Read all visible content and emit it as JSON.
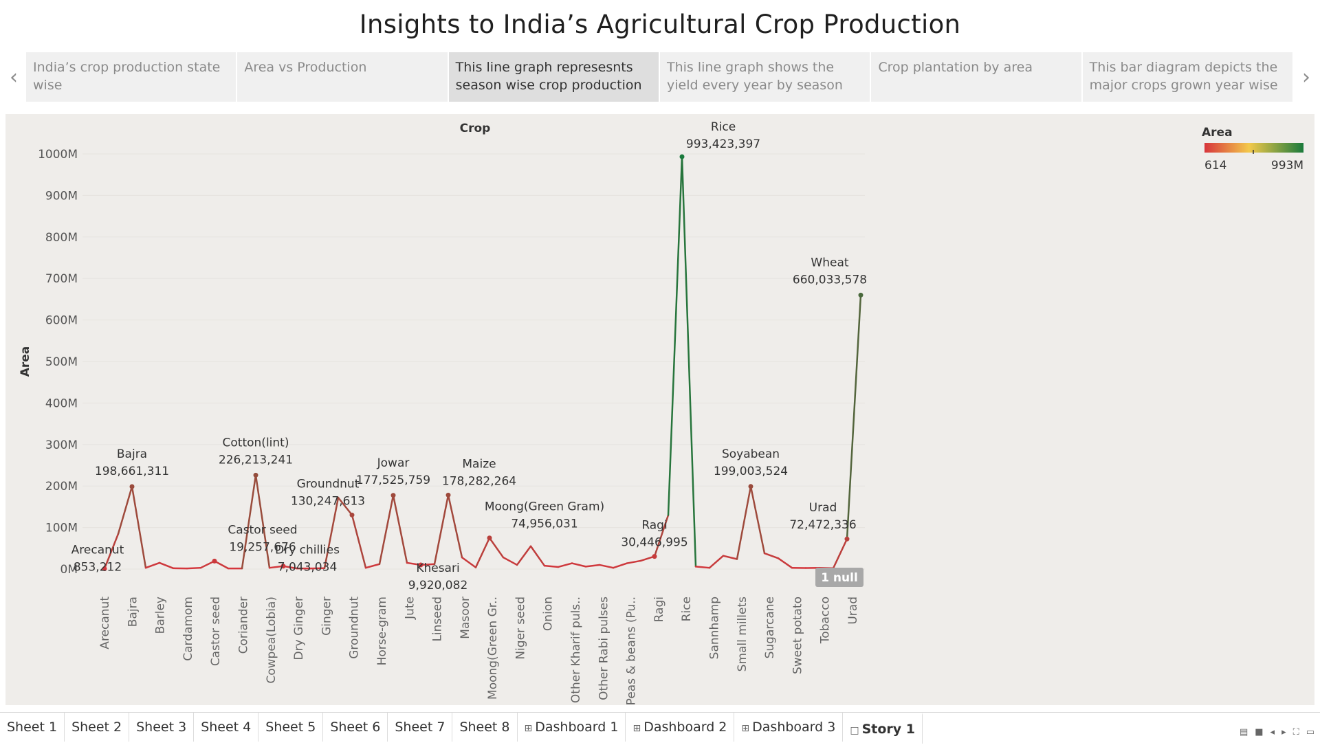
{
  "story": {
    "title": "Insights to India’s Agricultural Crop Production",
    "points": [
      {
        "label": "India’s crop production state wise",
        "active": false
      },
      {
        "label": "Area vs Production",
        "active": false
      },
      {
        "label": "This line graph represesnts season wise crop production",
        "active": true
      },
      {
        "label": "This line graph shows the yield every year by season",
        "active": false
      },
      {
        "label": "Crop plantation by area",
        "active": false
      },
      {
        "label": "This bar diagram depicts the major crops grown year wise",
        "active": false
      }
    ]
  },
  "legend": {
    "title": "Area",
    "min_label": "614",
    "max_label": "993M",
    "color_low": "#d7353c",
    "color_mid": "#f3c94b",
    "color_high": "#1a7a3c"
  },
  "null_badge": "1 null",
  "chart_data": {
    "type": "line",
    "title": "Crop",
    "ylabel": "Area",
    "ylim": [
      0,
      1050000000
    ],
    "y_ticks": [
      "0M",
      "100M",
      "200M",
      "300M",
      "400M",
      "500M",
      "600M",
      "700M",
      "800M",
      "900M",
      "1000M"
    ],
    "categories_shown": [
      "Arecanut",
      "Bajra",
      "Barley",
      "Cardamom",
      "Castor seed",
      "Coriander",
      "Cowpea(Lobia)",
      "Dry Ginger",
      "Ginger",
      "Groundnut",
      "Horse-gram",
      "Jute",
      "Linseed",
      "Masoor",
      "Moong(Green Gr..",
      "Niger seed",
      "Onion",
      "Other Kharif puls..",
      "Other Rabi pulses",
      "Peas & beans (Pu..",
      "Ragi",
      "Rice",
      "Sannhamp",
      "Small millets",
      "Sugarcane",
      "Sweet potato",
      "Tobacco",
      "Urad"
    ],
    "values": [
      853212,
      85000000,
      198661311,
      3000000,
      15000000,
      2000000,
      1500000,
      3000000,
      19257676,
      1500000,
      1500000,
      226213241,
      3000000,
      7043034,
      1500000,
      1500000,
      2000000,
      172000000,
      130247613,
      3000000,
      12000000,
      177525759,
      15000000,
      9920082,
      12000000,
      178282264,
      28000000,
      4000000,
      74956031,
      28000000,
      10000000,
      55000000,
      8000000,
      5000000,
      14000000,
      6000000,
      10000000,
      3000000,
      14000000,
      20000000,
      30446995,
      130000000,
      993423397,
      6000000,
      3000000,
      32000000,
      24000000,
      199003524,
      38000000,
      26000000,
      3000000,
      2500000,
      3000000,
      2000000,
      72472336,
      660033578
    ],
    "annotations": [
      {
        "name": "Arecanut",
        "value": "853,212"
      },
      {
        "name": "Bajra",
        "value": "198,661,311"
      },
      {
        "name": "Castor seed",
        "value": "19,257,676"
      },
      {
        "name": "Cotton(lint)",
        "value": "226,213,241"
      },
      {
        "name": "Dry chillies",
        "value": "7,043,034"
      },
      {
        "name": "Groundnut",
        "value": "130,247,613"
      },
      {
        "name": "Jowar",
        "value": "177,525,759"
      },
      {
        "name": "Khesari",
        "value": "9,920,082"
      },
      {
        "name": "Maize",
        "value": "178,282,264"
      },
      {
        "name": "Moong(Green Gram)",
        "value": "74,956,031"
      },
      {
        "name": "Ragi",
        "value": "30,446,995"
      },
      {
        "name": "Rice",
        "value": "993,423,397"
      },
      {
        "name": "Soyabean",
        "value": "199,003,524"
      },
      {
        "name": "Urad",
        "value": "72,472,336"
      },
      {
        "name": "Wheat",
        "value": "660,033,578"
      }
    ]
  },
  "tabs": [
    {
      "label": "Sheet 1",
      "icon": "",
      "active": false
    },
    {
      "label": "Sheet 2",
      "icon": "",
      "active": false
    },
    {
      "label": "Sheet 3",
      "icon": "",
      "active": false
    },
    {
      "label": "Sheet 4",
      "icon": "",
      "active": false
    },
    {
      "label": "Sheet 5",
      "icon": "",
      "active": false
    },
    {
      "label": "Sheet 6",
      "icon": "",
      "active": false
    },
    {
      "label": "Sheet 7",
      "icon": "",
      "active": false
    },
    {
      "label": "Sheet 8",
      "icon": "",
      "active": false
    },
    {
      "label": "Dashboard 1",
      "icon": "dashboard-icon",
      "active": false
    },
    {
      "label": "Dashboard 2",
      "icon": "dashboard-icon",
      "active": false
    },
    {
      "label": "Dashboard 3",
      "icon": "dashboard-icon",
      "active": false
    },
    {
      "label": "Story 1",
      "icon": "story-icon",
      "active": true
    }
  ]
}
